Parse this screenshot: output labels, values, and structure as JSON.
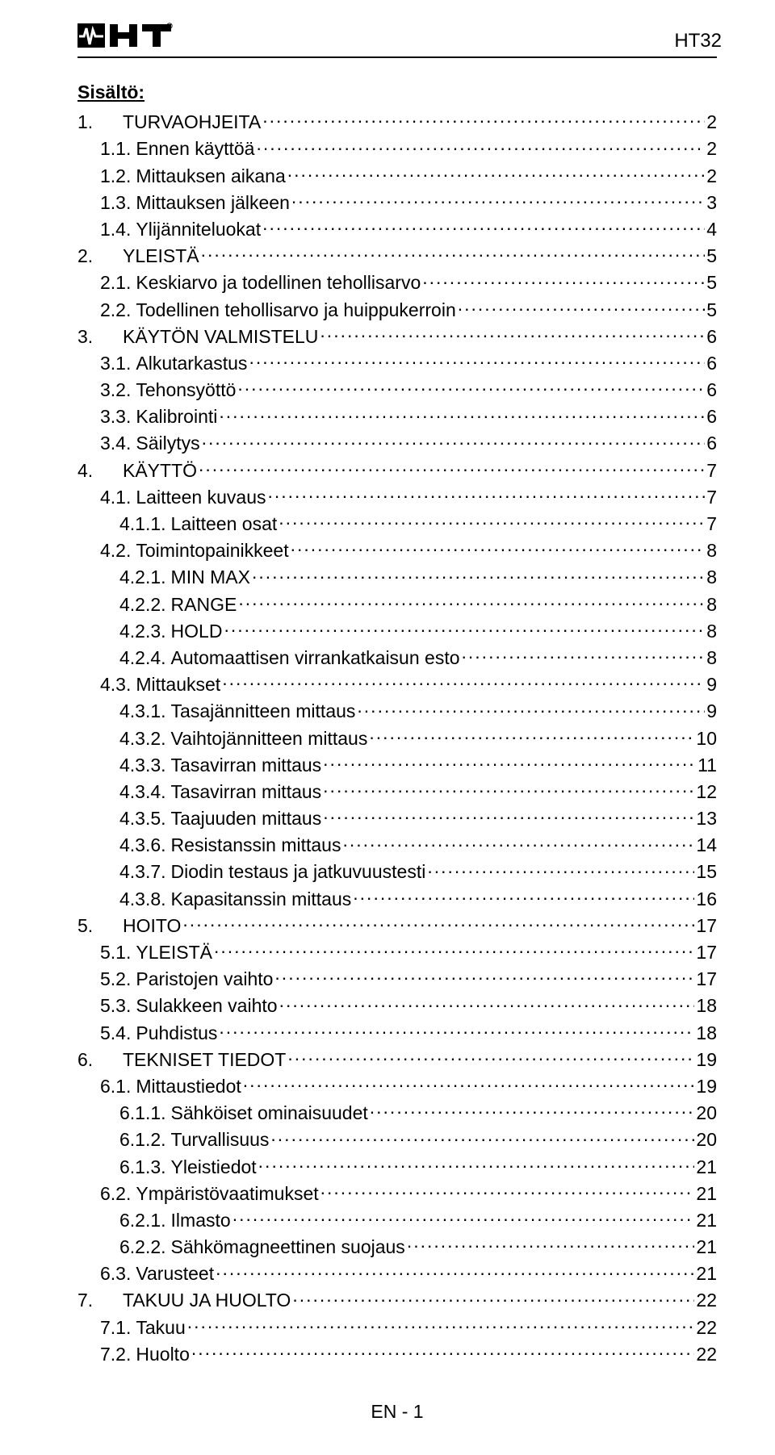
{
  "header": {
    "model": "HT32",
    "logo_alt": "HT"
  },
  "title": "Sisältö:",
  "footer": "EN - 1",
  "toc": [
    {
      "level": 0,
      "num": "1.",
      "title": "TURVAOHJEITA",
      "page": "2"
    },
    {
      "level": 1,
      "num": "1.1.",
      "title": "Ennen käyttöä",
      "page": "2"
    },
    {
      "level": 1,
      "num": "1.2.",
      "title": "Mittauksen aikana",
      "page": "2"
    },
    {
      "level": 1,
      "num": "1.3.",
      "title": "Mittauksen jälkeen",
      "page": "3"
    },
    {
      "level": 1,
      "num": "1.4.",
      "title": "Ylijänniteluokat",
      "page": "4"
    },
    {
      "level": 0,
      "num": "2.",
      "title": "YLEISTÄ",
      "page": "5"
    },
    {
      "level": 1,
      "num": "2.1.",
      "title": "Keskiarvo ja todellinen tehollisarvo",
      "page": "5"
    },
    {
      "level": 1,
      "num": "2.2.",
      "title": "Todellinen tehollisarvo ja huippukerroin",
      "page": "5"
    },
    {
      "level": 0,
      "num": "3.",
      "title": "KÄYTÖN VALMISTELU",
      "page": "6"
    },
    {
      "level": 1,
      "num": "3.1.",
      "title": "Alkutarkastus",
      "page": "6"
    },
    {
      "level": 1,
      "num": "3.2.",
      "title": "Tehonsyöttö",
      "page": "6"
    },
    {
      "level": 1,
      "num": "3.3.",
      "title": "Kalibrointi",
      "page": "6"
    },
    {
      "level": 1,
      "num": "3.4.",
      "title": "Säilytys",
      "page": "6"
    },
    {
      "level": 0,
      "num": "4.",
      "title": "KÄYTTÖ",
      "page": "7"
    },
    {
      "level": 1,
      "num": "4.1.",
      "title": "Laitteen kuvaus",
      "page": "7"
    },
    {
      "level": 2,
      "num": "4.1.1.",
      "title": "Laitteen osat",
      "page": "7"
    },
    {
      "level": 1,
      "num": "4.2.",
      "title": "Toimintopainikkeet",
      "page": "8"
    },
    {
      "level": 2,
      "num": "4.2.1.",
      "title": "MIN MAX",
      "page": "8"
    },
    {
      "level": 2,
      "num": "4.2.2.",
      "title": "RANGE",
      "page": "8"
    },
    {
      "level": 2,
      "num": "4.2.3.",
      "title": "HOLD",
      "page": "8"
    },
    {
      "level": 2,
      "num": "4.2.4.",
      "title": "Automaattisen virrankatkaisun esto",
      "page": "8"
    },
    {
      "level": 1,
      "num": "4.3.",
      "title": "Mittaukset",
      "page": "9"
    },
    {
      "level": 2,
      "num": "4.3.1.",
      "title": "Tasajännitteen mittaus",
      "page": "9"
    },
    {
      "level": 2,
      "num": "4.3.2.",
      "title": "Vaihtojännitteen mittaus",
      "page": "10"
    },
    {
      "level": 2,
      "num": "4.3.3.",
      "title": "Tasavirran mittaus",
      "page": "11"
    },
    {
      "level": 2,
      "num": "4.3.4.",
      "title": "Tasavirran mittaus",
      "page": "12"
    },
    {
      "level": 2,
      "num": "4.3.5.",
      "title": "Taajuuden mittaus",
      "page": "13"
    },
    {
      "level": 2,
      "num": "4.3.6.",
      "title": "Resistanssin mittaus",
      "page": "14"
    },
    {
      "level": 2,
      "num": "4.3.7.",
      "title": "Diodin testaus ja jatkuvuustesti",
      "page": "15"
    },
    {
      "level": 2,
      "num": "4.3.8.",
      "title": "Kapasitanssin mittaus",
      "page": "16"
    },
    {
      "level": 0,
      "num": "5.",
      "title": "HOITO",
      "page": "17"
    },
    {
      "level": 1,
      "num": "5.1.",
      "title": "YLEISTÄ",
      "page": "17"
    },
    {
      "level": 1,
      "num": "5.2.",
      "title": "Paristojen vaihto",
      "page": "17"
    },
    {
      "level": 1,
      "num": "5.3.",
      "title": "Sulakkeen vaihto",
      "page": "18"
    },
    {
      "level": 1,
      "num": "5.4.",
      "title": "Puhdistus",
      "page": "18"
    },
    {
      "level": 0,
      "num": "6.",
      "title": "TEKNISET TIEDOT",
      "page": "19"
    },
    {
      "level": 1,
      "num": "6.1.",
      "title": "Mittaustiedot",
      "page": "19"
    },
    {
      "level": 2,
      "num": "6.1.1.",
      "title": "Sähköiset ominaisuudet",
      "page": "20"
    },
    {
      "level": 2,
      "num": "6.1.2.",
      "title": "Turvallisuus",
      "page": "20"
    },
    {
      "level": 2,
      "num": "6.1.3.",
      "title": "Yleistiedot",
      "page": "21"
    },
    {
      "level": 1,
      "num": "6.2.",
      "title": "Ympäristövaatimukset",
      "page": "21"
    },
    {
      "level": 2,
      "num": "6.2.1.",
      "title": "Ilmasto",
      "page": "21"
    },
    {
      "level": 2,
      "num": "6.2.2.",
      "title": "Sähkömagneettinen suojaus",
      "page": "21"
    },
    {
      "level": 1,
      "num": "6.3.",
      "title": "Varusteet",
      "page": "21"
    },
    {
      "level": 0,
      "num": "7.",
      "title": "TAKUU JA HUOLTO",
      "page": "22"
    },
    {
      "level": 1,
      "num": "7.1.",
      "title": "Takuu",
      "page": "22"
    },
    {
      "level": 1,
      "num": "7.2.",
      "title": "Huolto",
      "page": "22"
    }
  ]
}
